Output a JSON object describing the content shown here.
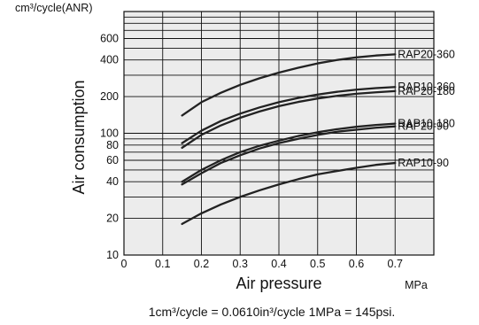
{
  "chart_data": {
    "type": "line",
    "yunit_label": "cm³/cycle(ANR)",
    "xlabel": "Air pressure",
    "ylabel": "Air consumption",
    "xunit_label": "MPa",
    "footnote": "1cm³/cycle = 0.0610in³/cycle    1MPa = 145psi.",
    "xlim": [
      0,
      0.8
    ],
    "ylim": [
      10,
      1000
    ],
    "yscale": "log",
    "grid": true,
    "legend_position": "right-of-lines",
    "x_ticks": [
      "0",
      "0.1",
      "0.2",
      "0.3",
      "0.4",
      "0.5",
      "0.6",
      "0.7"
    ],
    "y_ticks": [
      "10",
      "20",
      "40",
      "60",
      "80",
      "100",
      "200",
      "400",
      "600"
    ],
    "colors": {
      "grid": "#111111",
      "plot_bg": "#ececec",
      "series": "#222222"
    },
    "series": [
      {
        "name": "RAP20-360",
        "x": [
          0.15,
          0.2,
          0.25,
          0.3,
          0.35,
          0.4,
          0.45,
          0.5,
          0.55,
          0.6,
          0.65,
          0.7
        ],
        "y": [
          140,
          180,
          215,
          250,
          283,
          315,
          345,
          375,
          400,
          420,
          435,
          445
        ]
      },
      {
        "name": "RAP10-360",
        "x": [
          0.15,
          0.2,
          0.25,
          0.3,
          0.35,
          0.4,
          0.45,
          0.5,
          0.55,
          0.6,
          0.65,
          0.7
        ],
        "y": [
          83,
          105,
          126,
          145,
          163,
          180,
          195,
          208,
          219,
          228,
          235,
          240
        ]
      },
      {
        "name": "RAP20-180",
        "x": [
          0.15,
          0.2,
          0.25,
          0.3,
          0.35,
          0.4,
          0.45,
          0.5,
          0.55,
          0.6,
          0.65,
          0.7
        ],
        "y": [
          76,
          97,
          116,
          134,
          151,
          167,
          181,
          193,
          203,
          211,
          217,
          222
        ]
      },
      {
        "name": "RAP10-180",
        "x": [
          0.15,
          0.2,
          0.25,
          0.3,
          0.35,
          0.4,
          0.45,
          0.5,
          0.55,
          0.6,
          0.65,
          0.7
        ],
        "y": [
          40,
          50,
          60,
          70,
          79,
          87,
          95,
          102,
          108,
          113,
          117,
          120
        ]
      },
      {
        "name": "RAP20-90",
        "x": [
          0.15,
          0.2,
          0.25,
          0.3,
          0.35,
          0.4,
          0.45,
          0.5,
          0.55,
          0.6,
          0.65,
          0.7
        ],
        "y": [
          38,
          47,
          57,
          66,
          75,
          83,
          90,
          97,
          103,
          107,
          111,
          114
        ]
      },
      {
        "name": "RAP10-90",
        "x": [
          0.15,
          0.2,
          0.25,
          0.3,
          0.35,
          0.4,
          0.45,
          0.5,
          0.55,
          0.6,
          0.65,
          0.7
        ],
        "y": [
          18,
          22,
          26,
          30,
          34,
          38,
          42,
          46,
          49,
          52,
          55,
          57
        ]
      }
    ]
  }
}
